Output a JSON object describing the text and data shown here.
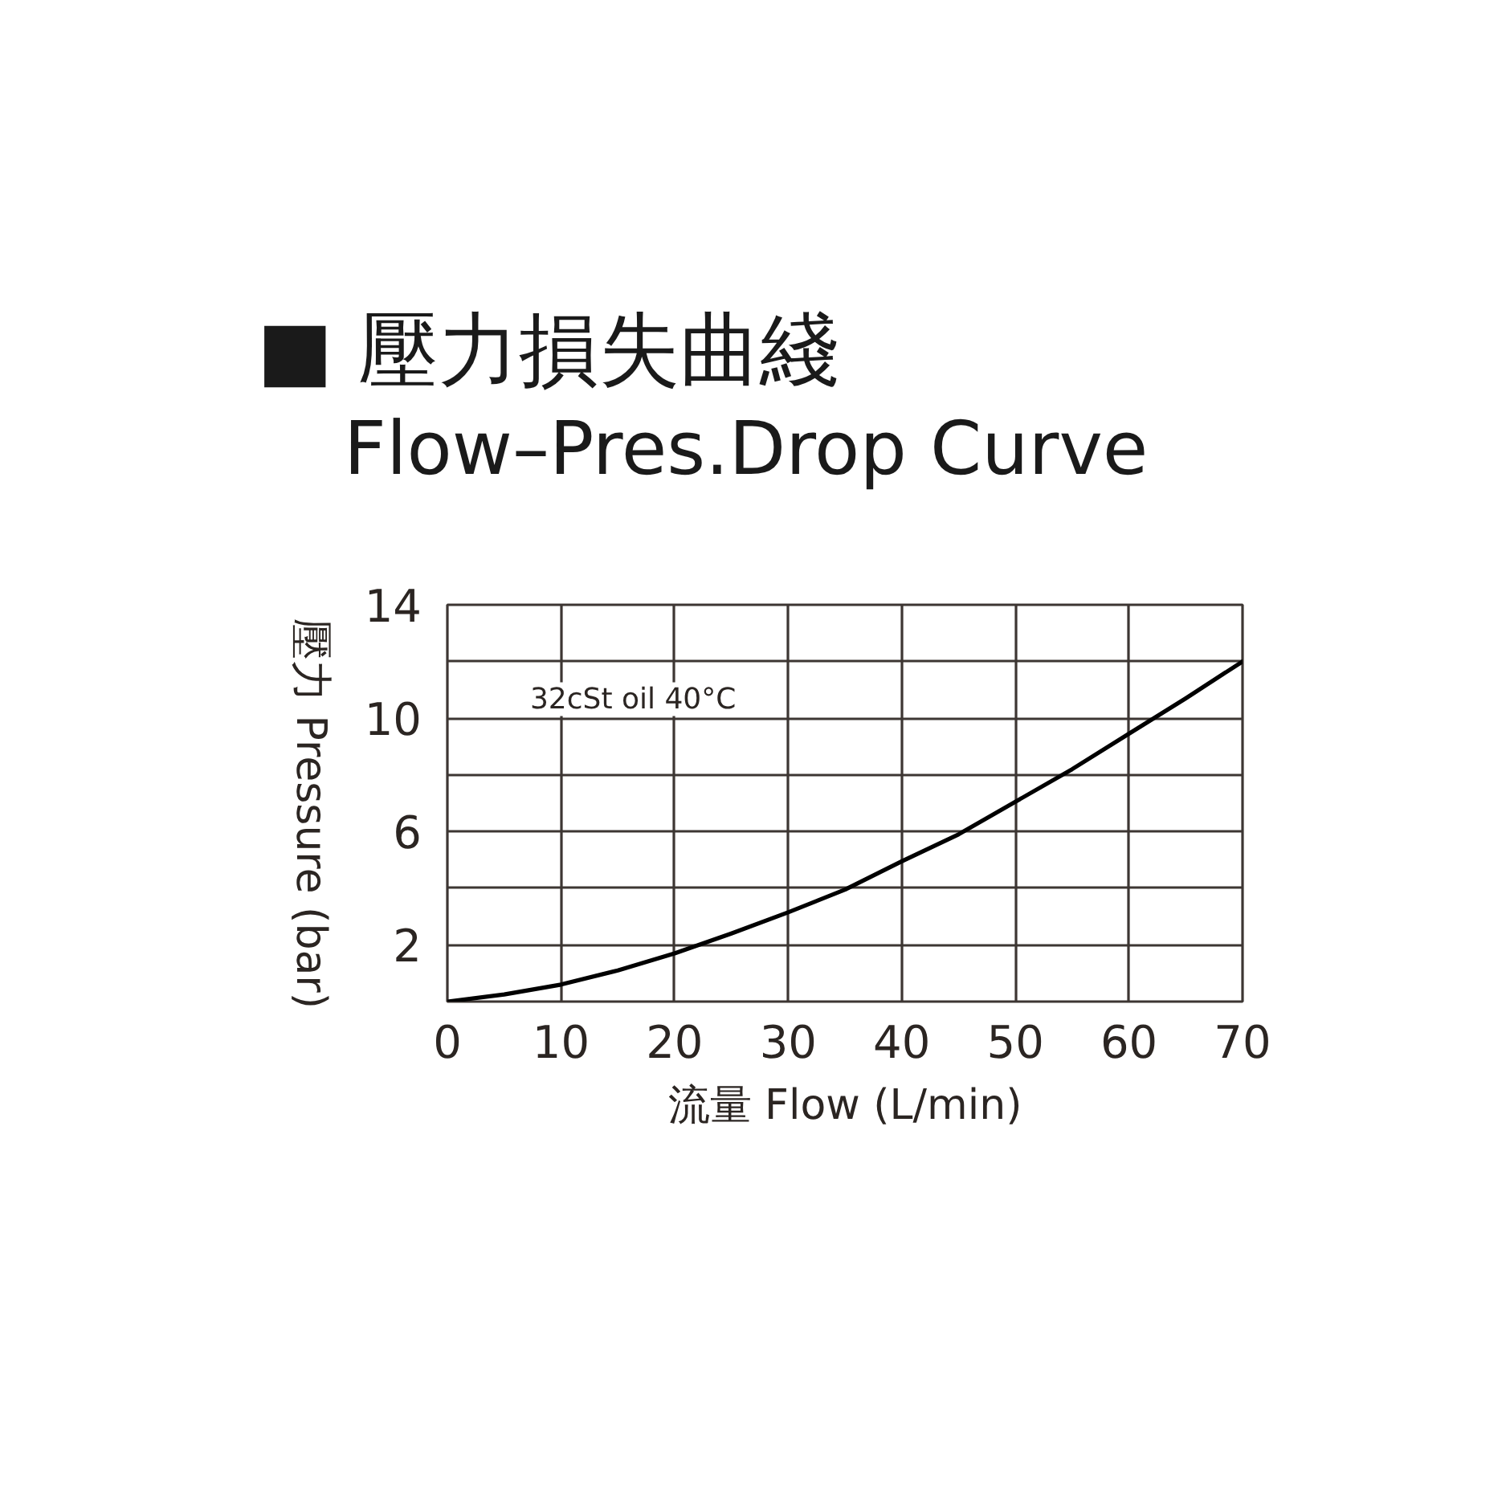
{
  "chart_data": {
    "type": "line",
    "title": "■ 壓力損失曲綫",
    "subtitle": "Flow–Pres.Drop Curve",
    "xlabel": "流量 Flow (L/min)",
    "ylabel": "壓力 Pressure (bar)",
    "annotations": [
      "32cSt oil 40°C"
    ],
    "x": [
      0,
      5,
      10,
      15,
      20,
      25,
      30,
      35,
      40,
      45,
      50,
      55,
      60,
      65,
      70
    ],
    "series": [
      {
        "color": "#000000",
        "values": [
          0,
          0.25,
          0.6,
          1.1,
          1.7,
          2.4,
          3.15,
          3.95,
          4.95,
          5.9,
          7.05,
          8.2,
          9.45,
          10.7,
          12.0
        ]
      }
    ],
    "xlim": [
      0,
      70
    ],
    "ylim": [
      0,
      14
    ],
    "xticks": [
      0,
      10,
      20,
      30,
      40,
      50,
      60,
      70
    ],
    "yticks": [
      {
        "value": 0,
        "label": null
      },
      2,
      {
        "value": 4,
        "label": null
      },
      6,
      {
        "value": 8,
        "label": null
      },
      10,
      {
        "value": 12,
        "label": null
      },
      14
    ],
    "grid": true,
    "marker": "none",
    "line_style": "solid"
  }
}
